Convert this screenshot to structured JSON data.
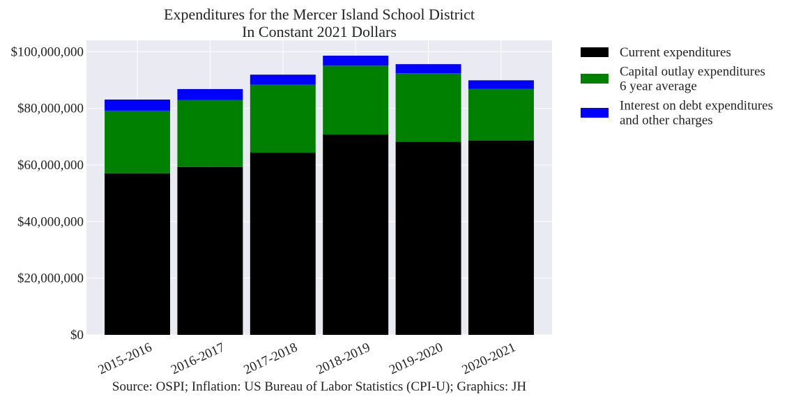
{
  "chart_data": {
    "type": "bar",
    "stacked": true,
    "title": "Expenditures for the Mercer Island School District",
    "subtitle": "In Constant 2021 Dollars",
    "xlabel": "",
    "ylabel": "",
    "source": "Source: OSPI; Inflation: US Bureau of Labor Statistics (CPI-U); Graphics: JH",
    "categories": [
      "2015-2016",
      "2016-2017",
      "2017-2018",
      "2018-2019",
      "2019-2020",
      "2020-2021"
    ],
    "series": [
      {
        "name": "Current expenditures",
        "color": "#000000",
        "values": [
          57100000,
          59300000,
          64400000,
          70800000,
          68200000,
          68600000
        ]
      },
      {
        "name": "Capital outlay expenditures\n6 year average",
        "color": "#008000",
        "values": [
          22100000,
          23600000,
          24000000,
          24300000,
          24200000,
          18300000
        ]
      },
      {
        "name": "Interest on debt expenditures\nand other charges",
        "color": "#0000ff",
        "values": [
          3900000,
          3900000,
          3500000,
          3500000,
          3200000,
          3000000
        ]
      }
    ],
    "ylim": [
      0,
      104000000
    ],
    "yticks": [
      0,
      20000000,
      40000000,
      60000000,
      80000000,
      100000000
    ],
    "ytick_labels": [
      "$0",
      "$20,000,000",
      "$40,000,000",
      "$60,000,000",
      "$80,000,000",
      "$100,000,000"
    ],
    "grid": true,
    "legend_position": "outside-right",
    "background": "#eaeaf2"
  }
}
